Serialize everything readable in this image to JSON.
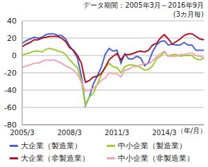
{
  "chart_data": {
    "type": "line",
    "title": "データ期間：2005年3月～2016年9月",
    "subtitle": "(3カ月毎)",
    "xlabel": "（年/月）",
    "categories": [
      "2005/3",
      null,
      null,
      null,
      null,
      null,
      null,
      null,
      null,
      null,
      null,
      null,
      "2008/3",
      null,
      null,
      null,
      null,
      null,
      null,
      null,
      null,
      null,
      null,
      null,
      "2011/3",
      null,
      null,
      null,
      null,
      null,
      null,
      null,
      null,
      null,
      null,
      null,
      "2014/3",
      null,
      null,
      null,
      null,
      null,
      null,
      null,
      null,
      null,
      null
    ],
    "series": [
      {
        "name": "大企業（製造業）",
        "color": "#4a5fd6",
        "values": [
          14,
          17,
          19,
          21,
          20,
          21,
          24,
          25,
          25,
          23,
          23,
          19,
          11,
          5,
          -3,
          -24,
          -58,
          -48,
          -33,
          -24,
          -14,
          1,
          8,
          5,
          6,
          -9,
          2,
          -4,
          -4,
          -1,
          -3,
          -12,
          -8,
          4,
          12,
          16,
          17,
          12,
          13,
          12,
          12,
          15,
          12,
          12,
          6,
          6,
          6
        ]
      },
      {
        "name": "中小企業（製造業）",
        "color": "#9acd32",
        "values": [
          0,
          2,
          3,
          5,
          5,
          4,
          7,
          8,
          7,
          5,
          4,
          1,
          -5,
          -10,
          -14,
          -29,
          -57,
          -48,
          -44,
          -33,
          -23,
          -14,
          -9,
          -13,
          -14,
          -20,
          -13,
          -11,
          -11,
          -12,
          -14,
          -17,
          -16,
          -12,
          -4,
          -1,
          4,
          -1,
          1,
          1,
          -1,
          0,
          0,
          0,
          -4,
          -5,
          -3
        ]
      },
      {
        "name": "大企業（非製造業）",
        "color": "#b01020",
        "values": [
          10,
          13,
          15,
          18,
          18,
          20,
          21,
          22,
          22,
          22,
          20,
          16,
          9,
          6,
          0,
          -9,
          -31,
          -29,
          -25,
          -24,
          -21,
          -14,
          -5,
          -1,
          2,
          -5,
          1,
          1,
          2,
          4,
          5,
          4,
          6,
          12,
          14,
          20,
          24,
          19,
          13,
          16,
          19,
          23,
          25,
          25,
          22,
          19,
          18
        ]
      },
      {
        "name": "中小企業（非製造業）",
        "color": "#f4a6b0",
        "values": [
          -14,
          -12,
          -11,
          -9,
          -9,
          -7,
          -5,
          -6,
          -5,
          -7,
          -9,
          -12,
          -14,
          -17,
          -22,
          -31,
          -41,
          -40,
          -38,
          -34,
          -29,
          -26,
          -20,
          -21,
          -21,
          -25,
          -17,
          -16,
          -13,
          -13,
          -11,
          -9,
          -10,
          -6,
          -2,
          2,
          5,
          -1,
          -1,
          -1,
          1,
          1,
          2,
          3,
          0,
          -1,
          -2
        ]
      }
    ],
    "ylim": [
      -80,
      40
    ],
    "yticks": [
      -80,
      -60,
      -40,
      -20,
      0,
      20,
      40
    ],
    "grid": true,
    "legend": "bottom"
  }
}
